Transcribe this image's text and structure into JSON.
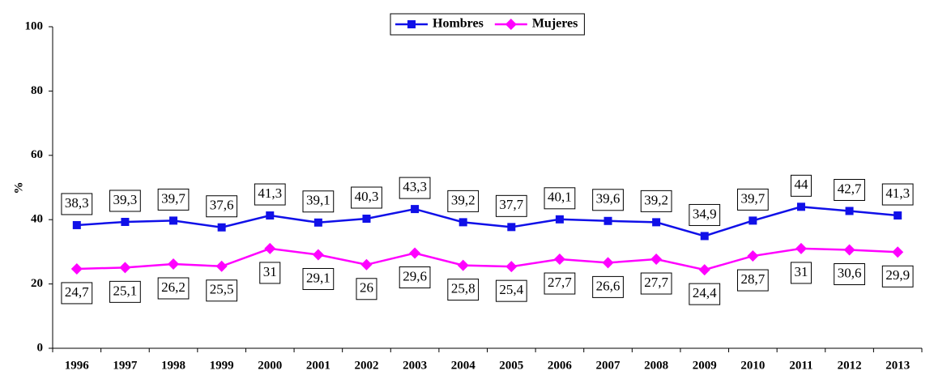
{
  "chart_data": {
    "type": "line",
    "y_label": "%",
    "categories": [
      "1996",
      "1997",
      "1998",
      "1999",
      "2000",
      "2001",
      "2002",
      "2003",
      "2004",
      "2005",
      "2006",
      "2007",
      "2008",
      "2009",
      "2010",
      "2011",
      "2012",
      "2013"
    ],
    "series": [
      {
        "name": "Hombres",
        "color": "#1010e8",
        "marker": "square",
        "values": [
          38.3,
          39.3,
          39.7,
          37.6,
          41.3,
          39.1,
          40.3,
          43.3,
          39.2,
          37.7,
          40.1,
          39.6,
          39.2,
          34.9,
          39.7,
          44,
          42.7,
          41.3
        ],
        "value_labels": [
          "38,3",
          "39,3",
          "39,7",
          "37,6",
          "41,3",
          "39,1",
          "40,3",
          "43,3",
          "39,2",
          "37,7",
          "40,1",
          "39,6",
          "39,2",
          "34,9",
          "39,7",
          "44",
          "42,7",
          "41,3"
        ]
      },
      {
        "name": "Mujeres",
        "color": "#ff00ff",
        "marker": "diamond",
        "values": [
          24.7,
          25.1,
          26.2,
          25.5,
          31,
          29.1,
          26,
          29.6,
          25.8,
          25.4,
          27.7,
          26.6,
          27.7,
          24.4,
          28.7,
          31,
          30.6,
          29.9
        ],
        "value_labels": [
          "24,7",
          "25,1",
          "26,2",
          "25,5",
          "31",
          "29,1",
          "26",
          "29,6",
          "25,8",
          "25,4",
          "27,7",
          "26,6",
          "27,7",
          "24,4",
          "28,7",
          "31",
          "30,6",
          "29,9"
        ]
      }
    ],
    "ylim": [
      0,
      100
    ],
    "yticks": [
      0,
      20,
      40,
      60,
      80,
      100
    ],
    "grid": false,
    "legend": "top"
  }
}
